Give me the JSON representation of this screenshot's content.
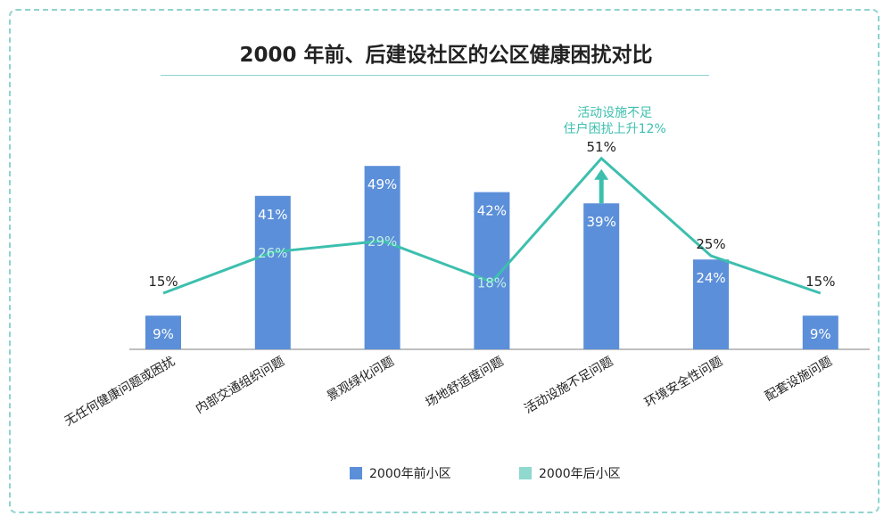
{
  "chart_data": {
    "type": "bar",
    "title": "2000 年前、后建设社区的公区健康困扰对比",
    "categories": [
      "无任何健康问题或困扰",
      "内部交通组织问题",
      "景观绿化问题",
      "场地舒适度问题",
      "活动设施不足问题",
      "环境安全性问题",
      "配套设施问题"
    ],
    "series": [
      {
        "name": "2000年前小区",
        "type": "bar",
        "color": "#5b8fd9",
        "values": [
          9,
          41,
          49,
          42,
          39,
          24,
          9
        ]
      },
      {
        "name": "2000年后小区",
        "type": "line",
        "color": "#3dbfae",
        "values": [
          15,
          26,
          29,
          18,
          51,
          25,
          15
        ]
      }
    ],
    "value_suffix": "%",
    "ylim": [
      0,
      55
    ],
    "grid": false,
    "legend": "bottom",
    "annotation": {
      "category_index": 4,
      "lines": [
        "活动设施不足",
        "住户困扰上升12%"
      ],
      "color": "#3dbfae"
    }
  }
}
